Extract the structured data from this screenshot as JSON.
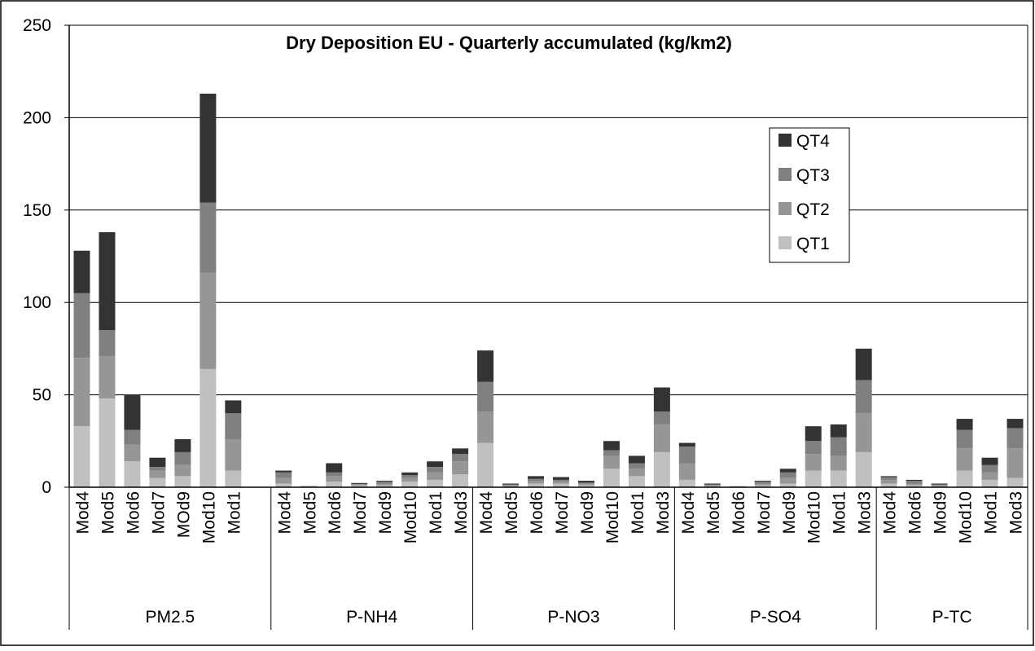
{
  "chart_data": {
    "type": "stacked-bar",
    "title": "Dry Deposition EU - Quarterly accumulated (kg/km2)",
    "groups": [
      {
        "label": "PM2.5",
        "categories": [
          "Mod4",
          "Mod5",
          "Mod6",
          "Mod7",
          "MOd9",
          "Mod10",
          "Mod1",
          null
        ]
      },
      {
        "label": "P-NH4",
        "categories": [
          "Mod4",
          "Mod5",
          "Mod6",
          "Mod7",
          "Mod9",
          "Mod10",
          "Mod1",
          "Mod3"
        ]
      },
      {
        "label": "P-NO3",
        "categories": [
          "Mod4",
          "Mod5",
          "Mod6",
          "Mod7",
          "Mod9",
          "Mod10",
          "Mod1",
          "Mod3"
        ]
      },
      {
        "label": "P-SO4",
        "categories": [
          "Mod4",
          "Mod5",
          "Mod6",
          "Mod7",
          "Mod9",
          "Mod10",
          "Mod1",
          "Mod3"
        ]
      },
      {
        "label": "P-TC",
        "categories": [
          "Mod4",
          "Mod6",
          "Mod9",
          "Mod10",
          "Mod1",
          "Mod3"
        ]
      }
    ],
    "series": [
      {
        "name": "QT1",
        "color": "#c0c0c0",
        "values": [
          33,
          48,
          14,
          5,
          6,
          64,
          9,
          null,
          2,
          0.3,
          3,
          1,
          1,
          3,
          4,
          7,
          24,
          0.5,
          2,
          2,
          1,
          10,
          6,
          19,
          4,
          0.5,
          0.2,
          1,
          2,
          9,
          9,
          19,
          2,
          1,
          0.5,
          9,
          4,
          5
        ]
      },
      {
        "name": "QT2",
        "color": "#969696",
        "values": [
          37,
          23,
          9,
          4,
          6,
          52,
          17,
          null,
          3,
          0.1,
          3,
          0.5,
          1,
          2,
          4,
          7,
          17,
          0.5,
          1.5,
          1,
          1,
          7,
          4,
          15,
          9,
          0.5,
          0.1,
          1,
          3,
          9,
          8,
          21,
          2,
          1,
          0.5,
          12,
          4,
          16
        ]
      },
      {
        "name": "QT3",
        "color": "#808080",
        "values": [
          35,
          14,
          8,
          2,
          7,
          38,
          14,
          null,
          3,
          0.1,
          2,
          0.3,
          1,
          1.5,
          3,
          4,
          16,
          0.5,
          1,
          1,
          0.5,
          3,
          3,
          7,
          9,
          0.5,
          0.1,
          1,
          3,
          7,
          10,
          18,
          1.5,
          1.5,
          0.5,
          10,
          4,
          11
        ]
      },
      {
        "name": "QT4",
        "color": "#333333",
        "values": [
          23,
          53,
          19,
          5,
          7,
          59,
          7,
          null,
          1,
          0.1,
          5,
          0.5,
          0.5,
          1.5,
          3,
          3,
          17,
          0.5,
          1.5,
          1.5,
          1,
          5,
          4,
          13,
          2,
          0.5,
          0.1,
          0.5,
          2,
          8,
          7,
          17,
          0.5,
          0.5,
          0.5,
          6,
          4,
          5
        ]
      }
    ],
    "ylim": [
      0,
      250
    ],
    "yticks": [
      0,
      50,
      100,
      150,
      200,
      250
    ],
    "grid": true
  }
}
